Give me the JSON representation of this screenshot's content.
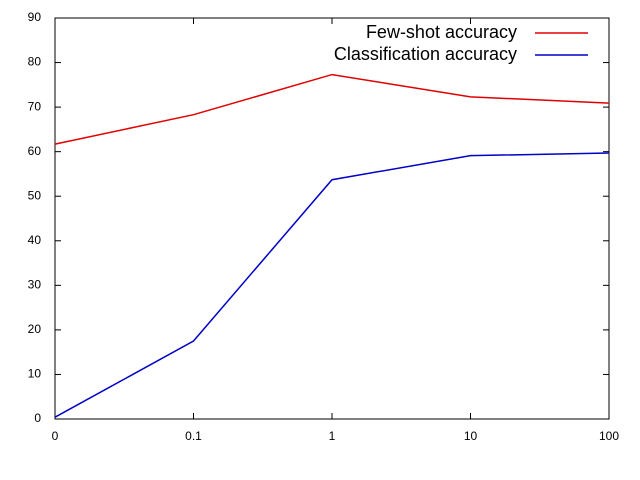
{
  "chart_data": {
    "type": "line",
    "categories": [
      "0",
      "0.1",
      "1",
      "10",
      "100"
    ],
    "series": [
      {
        "name": "Few-shot accuracy",
        "color": "#e00000",
        "values": [
          61.7,
          68.3,
          77.3,
          72.3,
          70.9
        ]
      },
      {
        "name": "Classification accuracy",
        "color": "#0000c8",
        "values": [
          0.4,
          17.5,
          53.7,
          59.1,
          59.7
        ]
      }
    ],
    "ylim": [
      0,
      90
    ],
    "yticks": [
      0,
      10,
      20,
      30,
      40,
      50,
      60,
      70,
      80,
      90
    ],
    "legend": "upper right"
  }
}
